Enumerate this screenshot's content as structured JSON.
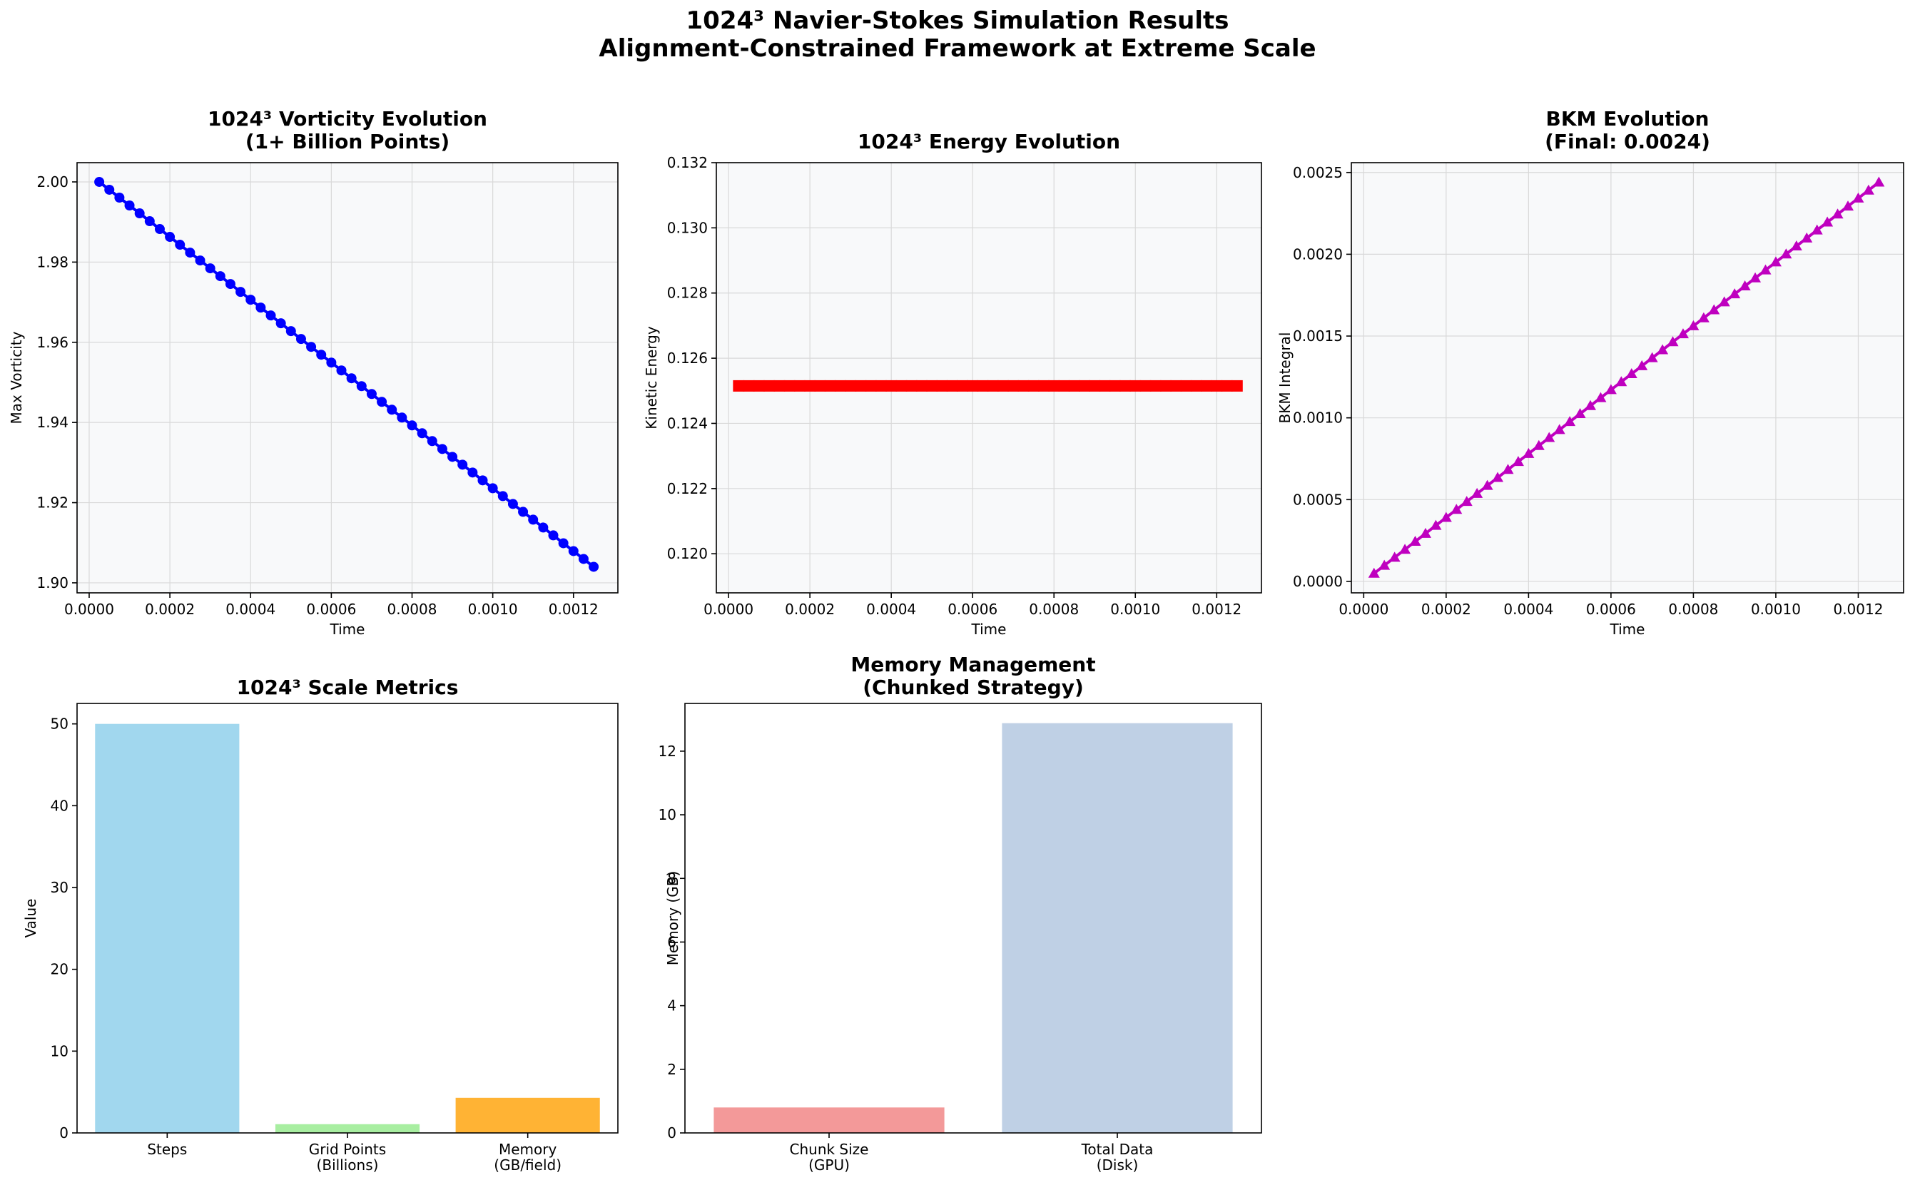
{
  "figure": {
    "title_line1": "1024³ Navier-Stokes Simulation Results",
    "title_line2": "Alignment-Constrained Framework at Extreme Scale"
  },
  "chart_data": [
    {
      "id": "vorticity",
      "type": "line",
      "title_lines": [
        "1024³ Vorticity Evolution",
        "(1+ Billion Points)"
      ],
      "xlabel": "Time",
      "ylabel": "Max Vorticity",
      "xlim": [
        -3e-05,
        0.00131
      ],
      "ylim": [
        1.8975,
        2.0048
      ],
      "xticks": [
        0.0,
        0.0002,
        0.0004,
        0.0006,
        0.0008,
        0.001,
        0.0012
      ],
      "xtick_labels": [
        "0.0000",
        "0.0002",
        "0.0004",
        "0.0006",
        "0.0008",
        "0.0010",
        "0.0012"
      ],
      "yticks": [
        1.9,
        1.92,
        1.94,
        1.96,
        1.98,
        2.0
      ],
      "ytick_labels": [
        "1.90",
        "1.92",
        "1.94",
        "1.96",
        "1.98",
        "2.00"
      ],
      "grid": true,
      "series": [
        {
          "color": "#0000ff",
          "marker": "circle",
          "x_start": 2.5e-05,
          "x_step": 2.5e-05,
          "count": 50,
          "y_start": 2.0,
          "y_end": 1.904
        }
      ]
    },
    {
      "id": "energy",
      "type": "line",
      "title_lines": [
        "1024³ Energy Evolution"
      ],
      "xlabel": "Time",
      "ylabel": "Kinetic Energy",
      "xlim": [
        -3e-05,
        0.00131
      ],
      "ylim": [
        0.1188,
        0.132
      ],
      "xticks": [
        0.0,
        0.0002,
        0.0004,
        0.0006,
        0.0008,
        0.001,
        0.0012
      ],
      "xtick_labels": [
        "0.0000",
        "0.0002",
        "0.0004",
        "0.0006",
        "0.0008",
        "0.0010",
        "0.0012"
      ],
      "yticks": [
        0.12,
        0.122,
        0.124,
        0.126,
        0.128,
        0.13,
        0.132
      ],
      "ytick_labels": [
        "0.120",
        "0.122",
        "0.124",
        "0.126",
        "0.128",
        "0.130",
        "0.132"
      ],
      "grid": true,
      "series": [
        {
          "color": "#ff0000",
          "marker": "square",
          "x_start": 2.5e-05,
          "x_step": 2.5e-05,
          "count": 50,
          "y_start": 0.12515,
          "y_end": 0.12515
        }
      ]
    },
    {
      "id": "bkm",
      "type": "line",
      "title_lines": [
        "BKM Evolution",
        "(Final: 0.0024)"
      ],
      "xlabel": "Time",
      "ylabel": "BKM Integral",
      "xlim": [
        -3e-05,
        0.00131
      ],
      "ylim": [
        -7e-05,
        0.00256
      ],
      "xticks": [
        0.0,
        0.0002,
        0.0004,
        0.0006,
        0.0008,
        0.001,
        0.0012
      ],
      "xtick_labels": [
        "0.0000",
        "0.0002",
        "0.0004",
        "0.0006",
        "0.0008",
        "0.0010",
        "0.0012"
      ],
      "yticks": [
        0.0,
        0.0005,
        0.001,
        0.0015,
        0.002,
        0.0025
      ],
      "ytick_labels": [
        "0.0000",
        "0.0005",
        "0.0010",
        "0.0015",
        "0.0020",
        "0.0025"
      ],
      "grid": true,
      "series": [
        {
          "color": "#bf00bf",
          "marker": "triangle",
          "x_start": 2.5e-05,
          "x_step": 2.5e-05,
          "count": 50,
          "y_start": 4.88e-05,
          "y_end": 0.00244
        }
      ]
    },
    {
      "id": "scale",
      "type": "bar",
      "title_lines": [
        "1024³ Scale Metrics"
      ],
      "xlabel": "",
      "ylabel": "Value",
      "ylim": [
        0,
        52.5
      ],
      "yticks": [
        0,
        10,
        20,
        30,
        40,
        50
      ],
      "ytick_labels": [
        "0",
        "10",
        "20",
        "30",
        "40",
        "50"
      ],
      "grid": false,
      "categories": [
        [
          "Steps"
        ],
        [
          "Grid Points",
          "(Billions)"
        ],
        [
          "Memory",
          "(GB/field)"
        ]
      ],
      "values": [
        50,
        1.07,
        4.29
      ],
      "colors": [
        "#a1d7ee",
        "#a8eea1",
        "#ffb334"
      ]
    },
    {
      "id": "memory",
      "type": "bar",
      "title_lines": [
        "Memory Management",
        "(Chunked Strategy)"
      ],
      "xlabel": "",
      "ylabel": "Memory (GB)",
      "ylim": [
        0,
        13.5
      ],
      "yticks": [
        0,
        2,
        4,
        6,
        8,
        10,
        12
      ],
      "ytick_labels": [
        "0",
        "2",
        "4",
        "6",
        "8",
        "10",
        "12"
      ],
      "grid": false,
      "categories": [
        [
          "Chunk Size",
          "(GPU)"
        ],
        [
          "Total Data",
          "(Disk)"
        ]
      ],
      "values": [
        0.8,
        12.88
      ],
      "colors": [
        "#f39999",
        "#bfd0e5"
      ]
    }
  ]
}
